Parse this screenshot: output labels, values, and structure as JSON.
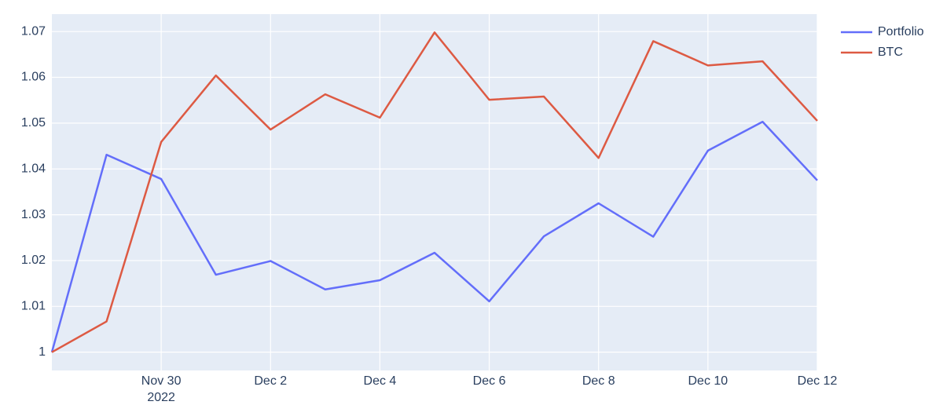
{
  "chart_data": {
    "type": "line",
    "x": [
      "2022-11-28",
      "2022-11-29",
      "2022-11-30",
      "2022-12-01",
      "2022-12-02",
      "2022-12-03",
      "2022-12-04",
      "2022-12-05",
      "2022-12-06",
      "2022-12-07",
      "2022-12-08",
      "2022-12-09",
      "2022-12-10",
      "2022-12-11",
      "2022-12-12"
    ],
    "series": [
      {
        "name": "Portfolio",
        "color": "#636efa",
        "values": [
          1,
          1.0431,
          1.0378,
          1.0169,
          1.0199,
          1.0137,
          1.0157,
          1.0217,
          1.0111,
          1.0253,
          1.0325,
          1.0252,
          1.044,
          1.0503,
          1.0375
        ]
      },
      {
        "name": "BTC",
        "color": "#dd5a43",
        "values": [
          1,
          1.0067,
          1.0459,
          1.0604,
          1.0486,
          1.0563,
          1.0512,
          1.0698,
          1.0551,
          1.0558,
          1.0424,
          1.0679,
          1.0626,
          1.0635,
          1.0505
        ]
      }
    ],
    "xlim": [
      "2022-11-28",
      "2022-12-12"
    ],
    "xticks": [
      {
        "value": "2022-11-30",
        "label": "Nov 30",
        "sublabel": "2022"
      },
      {
        "value": "2022-12-02",
        "label": "Dec 2"
      },
      {
        "value": "2022-12-04",
        "label": "Dec 4"
      },
      {
        "value": "2022-12-06",
        "label": "Dec 6"
      },
      {
        "value": "2022-12-08",
        "label": "Dec 8"
      },
      {
        "value": "2022-12-10",
        "label": "Dec 10"
      },
      {
        "value": "2022-12-12",
        "label": "Dec 12"
      }
    ],
    "ylim": [
      0.996,
      1.0738
    ],
    "yticks": [
      1,
      1.01,
      1.02,
      1.03,
      1.04,
      1.05,
      1.06,
      1.07
    ],
    "grid": true,
    "legend": "right"
  }
}
